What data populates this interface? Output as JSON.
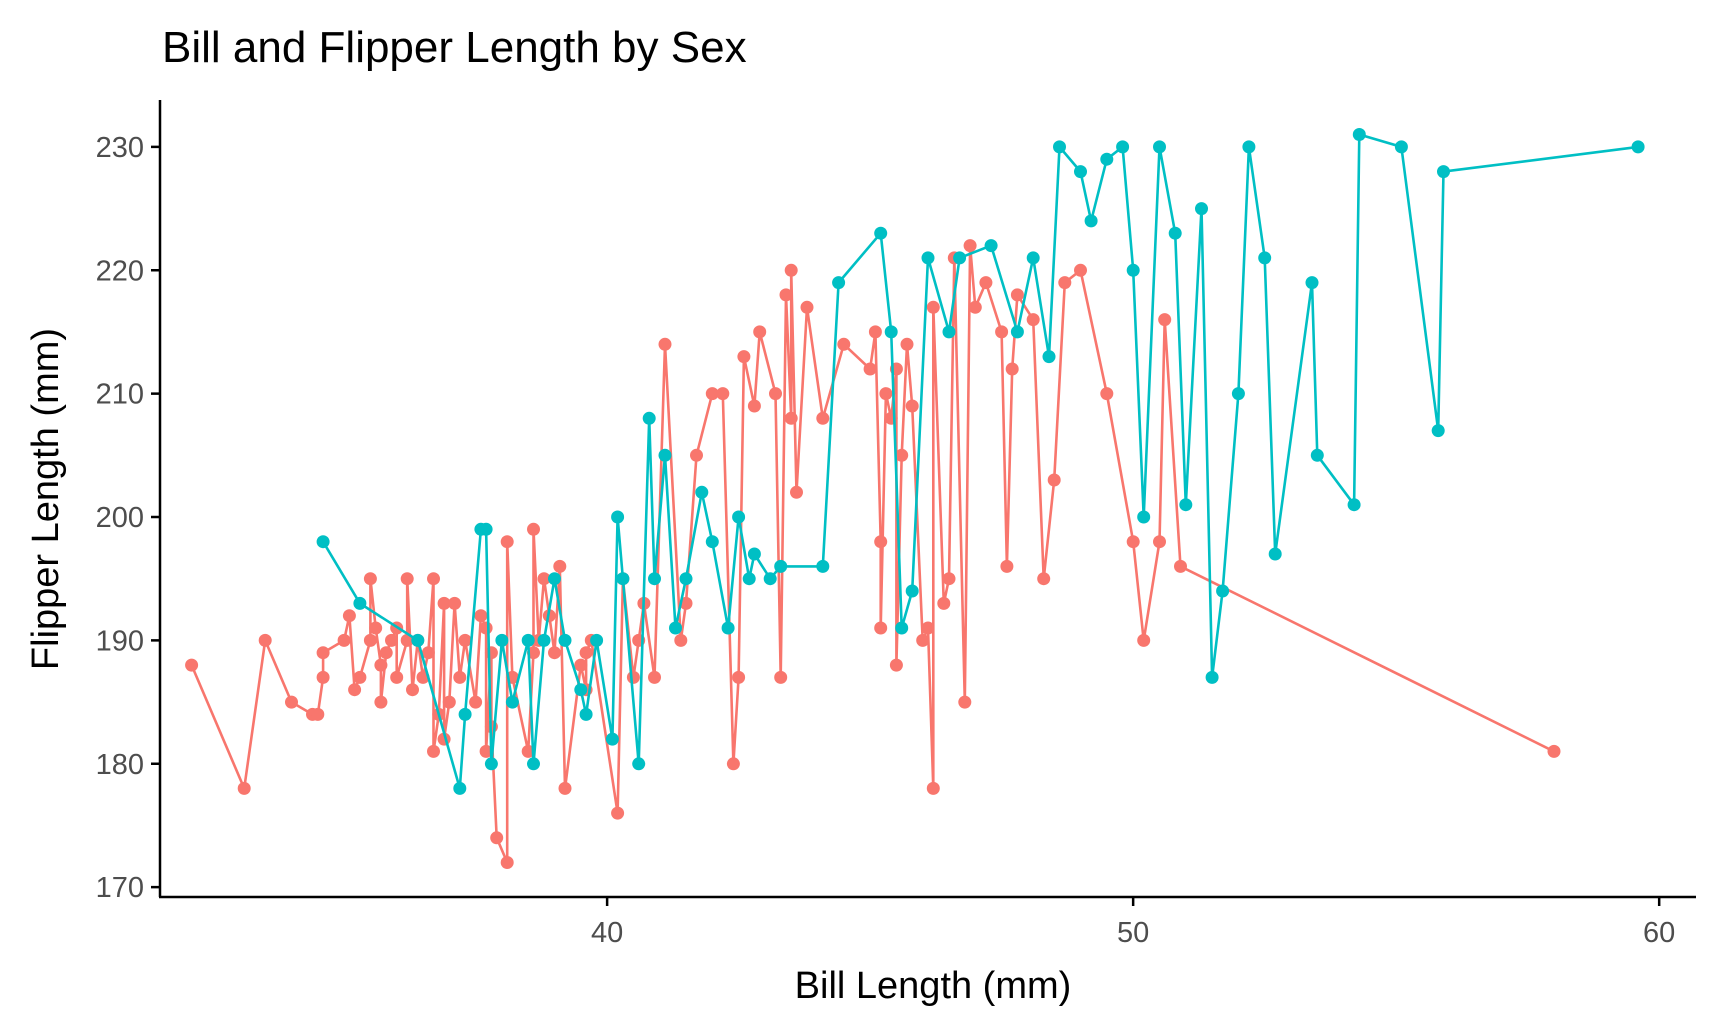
{
  "chart_data": {
    "type": "line",
    "title": "Bill and Flipper Length by Sex",
    "xlabel": "Bill Length (mm)",
    "ylabel": "Flipper Length (mm)",
    "xlim": [
      31.5,
      60.7
    ],
    "ylim": [
      169.2,
      233.8
    ],
    "xticks": [
      40,
      50,
      60
    ],
    "yticks": [
      170,
      180,
      190,
      200,
      210,
      220,
      230
    ],
    "grid": false,
    "legend": "none",
    "series": [
      {
        "color": "#F8766D",
        "x": [
          32.1,
          33.1,
          33.5,
          34.0,
          34.4,
          34.5,
          34.6,
          34.6,
          35.0,
          35.1,
          35.2,
          35.3,
          35.5,
          35.5,
          35.6,
          35.7,
          35.7,
          35.8,
          35.9,
          36.0,
          36.0,
          36.2,
          36.2,
          36.3,
          36.4,
          36.5,
          36.6,
          36.7,
          36.7,
          36.8,
          36.9,
          36.9,
          37.0,
          37.1,
          37.2,
          37.3,
          37.5,
          37.6,
          37.7,
          37.7,
          37.8,
          37.8,
          37.9,
          38.1,
          38.1,
          38.2,
          38.5,
          38.6,
          38.6,
          38.7,
          38.8,
          38.9,
          39.0,
          39.1,
          39.2,
          39.5,
          39.6,
          39.6,
          39.7,
          40.2,
          40.3,
          40.5,
          40.6,
          40.7,
          40.9,
          41.1,
          41.4,
          41.5,
          41.7,
          42.0,
          42.2,
          42.4,
          42.5,
          42.6,
          42.8,
          42.9,
          43.2,
          43.3,
          43.4,
          43.5,
          43.5,
          43.6,
          43.8,
          44.1,
          44.5,
          45.0,
          45.1,
          45.2,
          45.2,
          45.3,
          45.4,
          45.5,
          45.5,
          45.6,
          45.7,
          45.8,
          46.0,
          46.1,
          46.2,
          46.2,
          46.4,
          46.5,
          46.6,
          46.8,
          46.9,
          47.0,
          47.2,
          47.5,
          47.6,
          47.7,
          47.8,
          48.1,
          48.3,
          48.5,
          48.7,
          49.0,
          49.5,
          50.0,
          50.2,
          50.5,
          50.6,
          50.9,
          58.0
        ],
        "y": [
          188,
          178,
          190,
          185,
          184,
          184,
          187,
          189,
          190,
          192,
          186,
          187,
          190,
          195,
          191,
          188,
          185,
          189,
          190,
          191,
          187,
          190,
          195,
          186,
          190,
          187,
          189,
          195,
          181,
          184,
          193,
          182,
          185,
          193,
          187,
          190,
          185,
          192,
          191,
          181,
          189,
          183,
          174,
          172,
          198,
          187,
          181,
          189,
          199,
          190,
          195,
          192,
          189,
          196,
          178,
          188,
          186,
          189,
          190,
          176,
          195,
          187,
          190,
          193,
          187,
          214,
          190,
          193,
          205,
          210,
          210,
          180,
          187,
          213,
          209,
          215,
          210,
          187,
          218,
          208,
          220,
          202,
          217,
          208,
          214,
          212,
          215,
          198,
          191,
          210,
          208,
          212,
          188,
          205,
          214,
          209,
          190,
          191,
          178,
          217,
          193,
          195,
          221,
          185,
          222,
          217,
          219,
          215,
          196,
          212,
          218,
          216,
          195,
          203,
          219,
          220,
          210,
          198,
          190,
          198,
          216,
          196,
          181
        ]
      },
      {
        "color": "#00BFC4",
        "x": [
          34.6,
          35.3,
          36.4,
          37.2,
          37.3,
          37.6,
          37.7,
          37.8,
          38.0,
          38.2,
          38.5,
          38.6,
          38.8,
          39.0,
          39.2,
          39.5,
          39.6,
          39.8,
          40.1,
          40.2,
          40.3,
          40.6,
          40.8,
          40.9,
          41.1,
          41.3,
          41.5,
          41.8,
          42.0,
          42.3,
          42.5,
          42.7,
          42.8,
          43.1,
          43.3,
          44.1,
          44.4,
          45.2,
          45.4,
          45.6,
          45.8,
          46.1,
          46.5,
          46.7,
          47.3,
          47.8,
          48.1,
          48.4,
          48.6,
          49.0,
          49.2,
          49.5,
          49.8,
          50.0,
          50.2,
          50.5,
          50.8,
          51.0,
          51.3,
          51.5,
          51.7,
          52.0,
          52.2,
          52.5,
          52.7,
          53.4,
          53.5,
          54.2,
          54.3,
          55.1,
          55.8,
          55.9,
          59.6
        ],
        "y": [
          198,
          193,
          190,
          178,
          184,
          199,
          199,
          180,
          190,
          185,
          190,
          180,
          190,
          195,
          190,
          186,
          184,
          190,
          182,
          200,
          195,
          180,
          208,
          195,
          205,
          191,
          195,
          202,
          198,
          191,
          200,
          195,
          197,
          195,
          196,
          196,
          219,
          223,
          215,
          191,
          194,
          221,
          215,
          221,
          222,
          215,
          221,
          213,
          230,
          228,
          224,
          229,
          230,
          220,
          200,
          230,
          223,
          201,
          225,
          187,
          194,
          210,
          230,
          221,
          197,
          219,
          205,
          201,
          231,
          230,
          207,
          228,
          230
        ]
      }
    ]
  }
}
